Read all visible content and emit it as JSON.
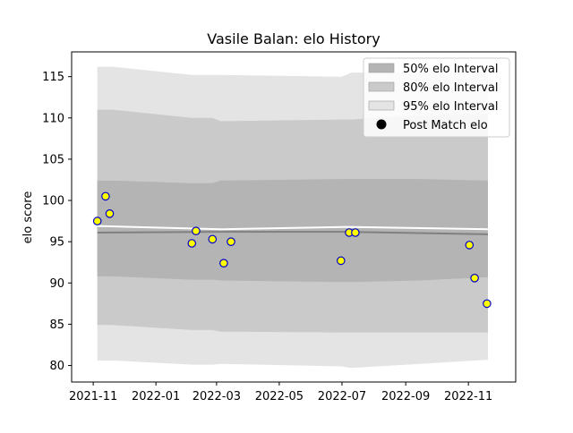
{
  "chart_data": {
    "type": "scatter",
    "title": "Vasile Balan: elo History",
    "xlabel": "",
    "ylabel": "elo score",
    "xlim": [
      "2021-10-11",
      "2022-12-17"
    ],
    "ylim": [
      78,
      118
    ],
    "x_ticks": [
      "2021-11",
      "2022-01",
      "2022-03",
      "2022-05",
      "2022-07",
      "2022-09",
      "2022-11"
    ],
    "y_ticks": [
      80,
      85,
      90,
      95,
      100,
      105,
      110,
      115
    ],
    "grid": false,
    "legend_position": "top-right",
    "legend": [
      {
        "label": "50% elo Interval",
        "kind": "patch",
        "color": "#b4b4b4"
      },
      {
        "label": "80% elo Interval",
        "kind": "patch",
        "color": "#cacaca"
      },
      {
        "label": "95% elo Interval",
        "kind": "patch",
        "color": "#e4e4e4"
      },
      {
        "label": "Post Match elo",
        "kind": "marker",
        "color": "#000000"
      }
    ],
    "bands": {
      "x": [
        "2021-11-05",
        "2021-11-20",
        "2022-02-05",
        "2022-02-25",
        "2022-03-05",
        "2022-06-30",
        "2022-07-05",
        "2022-07-10",
        "2022-09-15",
        "2022-11-20"
      ],
      "p95_upper": [
        116.2,
        116.2,
        115.2,
        115.2,
        115.2,
        115.0,
        115.2,
        115.5,
        115.5,
        115.5
      ],
      "p80_upper": [
        111.0,
        111.0,
        110.0,
        110.0,
        109.6,
        109.8,
        109.8,
        109.8,
        110.3,
        110.5
      ],
      "p50_upper": [
        102.4,
        102.4,
        102.1,
        102.1,
        102.4,
        102.6,
        102.6,
        102.6,
        102.6,
        102.4
      ],
      "p50_lower": [
        90.8,
        90.8,
        90.4,
        90.4,
        90.3,
        90.1,
        90.1,
        90.1,
        90.3,
        90.7
      ],
      "p80_lower": [
        84.9,
        84.9,
        84.3,
        84.3,
        84.1,
        84.0,
        84.0,
        84.0,
        84.0,
        84.0
      ],
      "p95_lower": [
        80.6,
        80.6,
        80.1,
        80.1,
        80.2,
        79.9,
        79.8,
        79.7,
        80.2,
        80.7
      ]
    },
    "series": [
      {
        "kind": "line",
        "color": "#808080",
        "x": [
          "2021-11-05",
          "2022-03-05",
          "2022-07-05",
          "2022-11-20"
        ],
        "y": [
          96.1,
          96.2,
          96.2,
          95.9
        ]
      },
      {
        "kind": "line",
        "color": "#ffffff",
        "x": [
          "2021-11-05",
          "2022-03-05",
          "2022-07-05",
          "2022-11-20"
        ],
        "y": [
          96.9,
          96.5,
          96.8,
          96.5
        ]
      },
      {
        "name": "Post Match elo",
        "kind": "scatter",
        "marker_fill": "#ffff00",
        "marker_edge": "#0000cc",
        "points": [
          {
            "x": "2021-11-05",
            "y": 97.5
          },
          {
            "x": "2021-11-13",
            "y": 100.5
          },
          {
            "x": "2021-11-17",
            "y": 98.4
          },
          {
            "x": "2022-02-05",
            "y": 94.8
          },
          {
            "x": "2022-02-09",
            "y": 96.3
          },
          {
            "x": "2022-02-25",
            "y": 95.3
          },
          {
            "x": "2022-03-08",
            "y": 92.4
          },
          {
            "x": "2022-03-15",
            "y": 95.0
          },
          {
            "x": "2022-06-30",
            "y": 92.7
          },
          {
            "x": "2022-07-08",
            "y": 96.1
          },
          {
            "x": "2022-07-14",
            "y": 96.1
          },
          {
            "x": "2022-11-02",
            "y": 94.6
          },
          {
            "x": "2022-11-07",
            "y": 90.6
          },
          {
            "x": "2022-11-19",
            "y": 87.5
          }
        ]
      }
    ]
  }
}
